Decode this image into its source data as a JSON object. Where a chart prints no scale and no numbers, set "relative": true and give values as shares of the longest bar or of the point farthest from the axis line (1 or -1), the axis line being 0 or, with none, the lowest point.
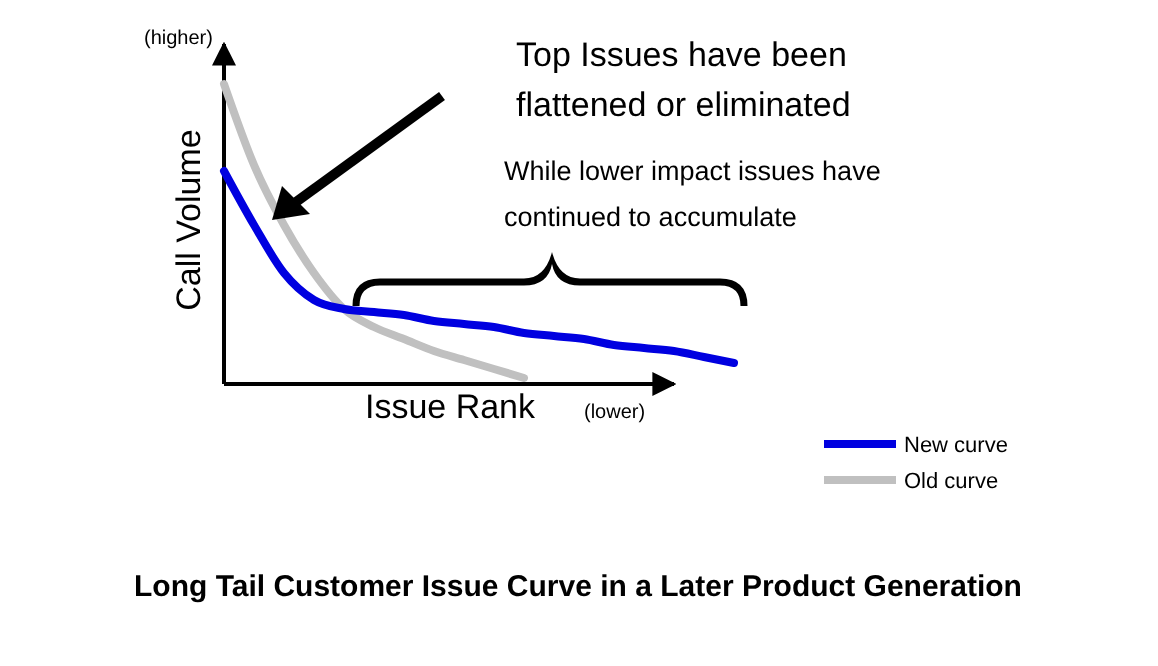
{
  "chart_data": {
    "type": "line",
    "relative": true,
    "title": "Long Tail Customer Issue Curve in a Later Product Generation",
    "xlabel": "Issue Rank",
    "ylabel": "Call Volume",
    "categories": [
      null,
      null,
      null,
      null,
      null,
      null,
      null,
      null,
      null,
      null,
      null,
      null,
      null,
      null,
      null,
      null,
      null,
      null
    ],
    "series": [
      {
        "name": "New curve",
        "color": "#0000e0",
        "values": [
          0.71,
          0.53,
          0.37,
          0.28,
          0.25,
          0.24,
          0.23,
          0.21,
          0.2,
          0.19,
          0.17,
          0.16,
          0.15,
          0.13,
          0.12,
          0.11,
          0.09,
          0.07
        ]
      },
      {
        "name": "Old curve",
        "color": "#c0c0c0",
        "values": [
          1,
          0.73,
          0.53,
          0.37,
          0.25,
          0.19,
          0.15,
          0.11,
          0.08,
          0.05,
          0.02,
          null,
          null,
          null,
          null,
          null,
          null,
          null
        ]
      }
    ],
    "annotations": [
      "(higher)",
      "(lower)",
      "Top Issues have been flattened or eliminated",
      "While lower impact issues have continued to accumulate"
    ],
    "legend": "bottom right",
    "line_style": "solid"
  }
}
